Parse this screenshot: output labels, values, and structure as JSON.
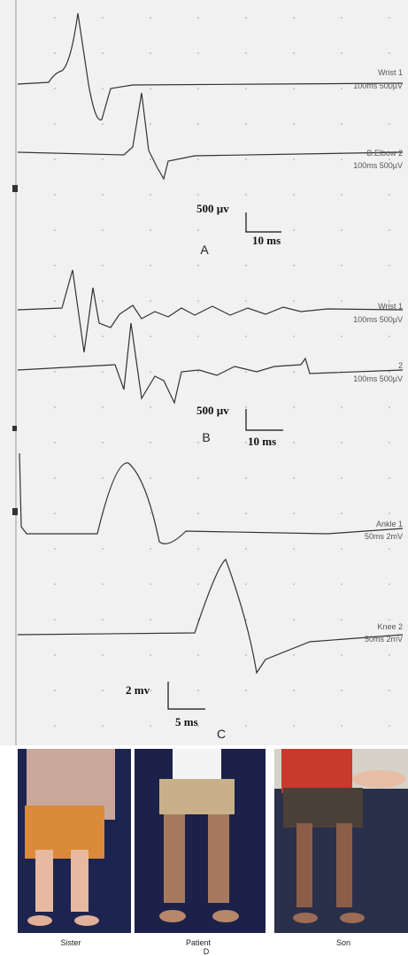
{
  "panels": [
    {
      "label": "A",
      "traces": [
        {
          "name": "Wrist 1",
          "settings": "100ms 500µV"
        },
        {
          "name": "B.Elbow 2",
          "settings": "100ms 500µV"
        }
      ],
      "scale": {
        "vertical": "500 µv",
        "horizontal": "10 ms"
      }
    },
    {
      "label": "B",
      "traces": [
        {
          "name": "Wrist 1",
          "settings": "100ms 500µV"
        },
        {
          "name": "2",
          "settings": "100ms 500µV"
        }
      ],
      "scale": {
        "vertical": "500 µv",
        "horizontal": "10 ms"
      }
    },
    {
      "label": "C",
      "traces": [
        {
          "name": "Ankle 1",
          "settings": "50ms 2mV"
        },
        {
          "name": "Knee 2",
          "settings": "50ms 2mV"
        }
      ],
      "scale": {
        "vertical": "2 mv",
        "horizontal": "5 ms"
      }
    }
  ],
  "photos": {
    "captions": [
      "Sister",
      "Patient",
      "Son"
    ],
    "label": "D"
  }
}
